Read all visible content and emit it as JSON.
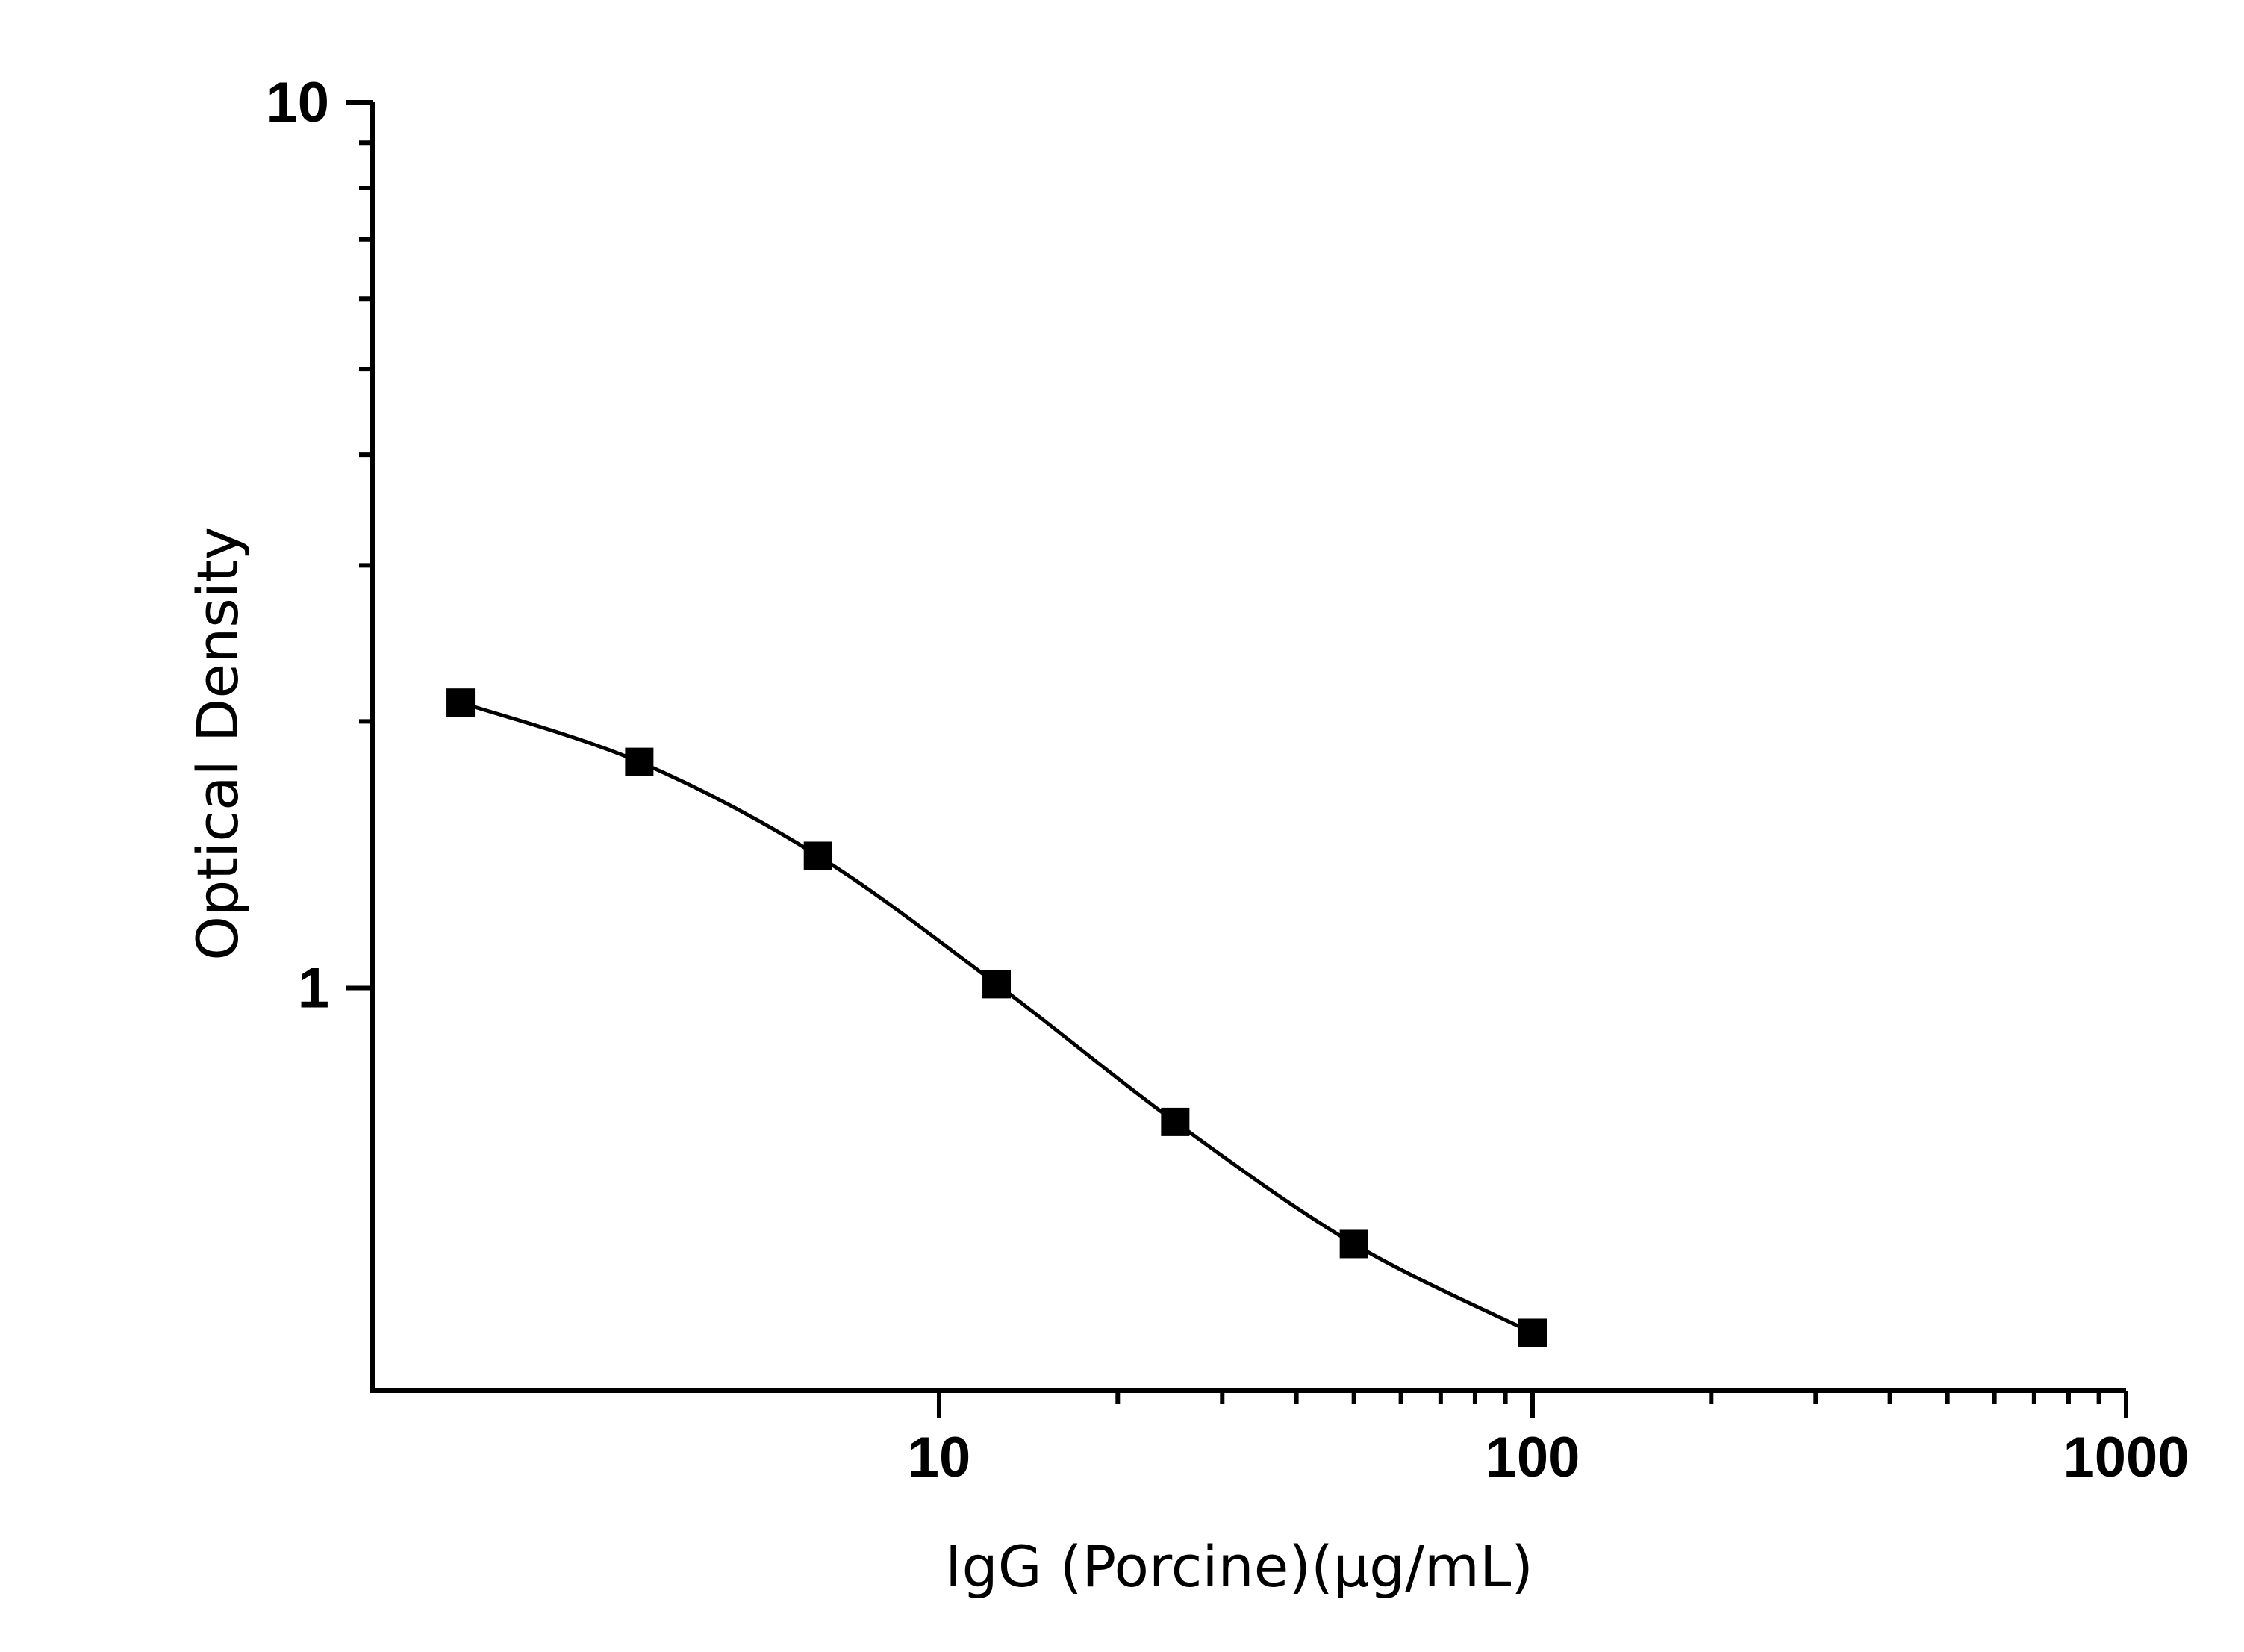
{
  "chart_data": {
    "type": "scatter",
    "x_label": "IgG (Porcine)(μg/mL)",
    "y_label": "Optical Density",
    "x_log": true,
    "y_log": true,
    "xlim": [
      1.11,
      1000
    ],
    "ylim": [
      0.351,
      10
    ],
    "xticks": [
      10,
      100,
      1000
    ],
    "yticks": [
      1,
      10
    ],
    "series": [
      {
        "color": "#000000",
        "x": [
          1.5625,
          3.125,
          6.25,
          12.5,
          25,
          50,
          100
        ],
        "values": [
          2.1,
          1.8,
          1.41,
          1.01,
          0.706,
          0.514,
          0.408
        ]
      }
    ]
  }
}
